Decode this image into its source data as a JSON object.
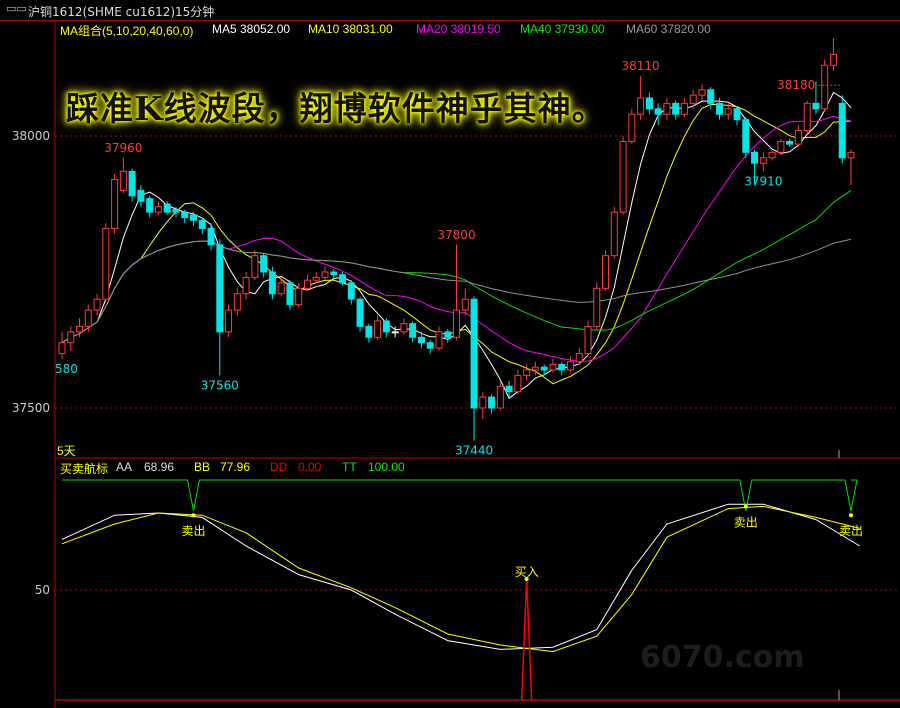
{
  "window": {
    "title": "沪铜1612(SHME cu1612)15分钟",
    "watermark": "6070.com"
  },
  "slogan": "踩准K线波段，翔博软件神乎其神。",
  "ma_header": {
    "group": "MA组合(5,10,20,40,60,0)",
    "ma5": "MA5 38052.00",
    "ma10": "MA10 38031.00",
    "ma20": "MA20 38019.50",
    "ma40": "MA40 37930.00",
    "ma60": "MA60 37820.00"
  },
  "indicator_header": {
    "name": "买卖航标",
    "aa_label": "AA",
    "aa_value": "68.96",
    "bb_label": "BB",
    "bb_value": "77.96",
    "dd_label": "DD",
    "dd_value": "0.00",
    "tt_label": "TT",
    "tt_value": "100.00"
  },
  "period_label": "5天",
  "colors": {
    "up": "#ff3b3b",
    "down": "#00e5e5",
    "ma5": "#ffffff",
    "ma10": "#ffff00",
    "ma20": "#ff00ff",
    "ma40": "#00e000",
    "ma60": "#909090",
    "grid": "#c00000",
    "aa": "#ffffff",
    "bb": "#ffff00",
    "tt": "#00e000",
    "dd": "#ff0000"
  },
  "chart_data": [
    {
      "type": "candlestick",
      "title": "沪铜1612(SHME cu1612)15分钟",
      "y_ticks": [
        38000,
        37500
      ],
      "ylim": [
        37420,
        38225
      ],
      "ma_periods": [
        5,
        10,
        20,
        40,
        60
      ],
      "ohlc": [
        [
          37600,
          37640,
          37590,
          37620
        ],
        [
          37620,
          37650,
          37605,
          37640
        ],
        [
          37640,
          37665,
          37630,
          37650
        ],
        [
          37650,
          37690,
          37640,
          37680
        ],
        [
          37680,
          37710,
          37670,
          37700
        ],
        [
          37700,
          37840,
          37695,
          37830
        ],
        [
          37830,
          37930,
          37820,
          37920
        ],
        [
          37900,
          37960,
          37895,
          37935
        ],
        [
          37935,
          37940,
          37880,
          37890
        ],
        [
          37900,
          37910,
          37870,
          37880
        ],
        [
          37885,
          37890,
          37850,
          37860
        ],
        [
          37860,
          37880,
          37855,
          37870
        ],
        [
          37875,
          37880,
          37855,
          37860
        ],
        [
          37865,
          37870,
          37850,
          37860
        ],
        [
          37860,
          37865,
          37840,
          37850
        ],
        [
          37855,
          37860,
          37835,
          37845
        ],
        [
          37845,
          37850,
          37820,
          37830
        ],
        [
          37830,
          37840,
          37790,
          37800
        ],
        [
          37800,
          37810,
          37560,
          37640
        ],
        [
          37640,
          37690,
          37630,
          37680
        ],
        [
          37680,
          37720,
          37670,
          37710
        ],
        [
          37710,
          37750,
          37700,
          37740
        ],
        [
          37740,
          37790,
          37735,
          37780
        ],
        [
          37780,
          37785,
          37740,
          37750
        ],
        [
          37750,
          37760,
          37700,
          37710
        ],
        [
          37710,
          37740,
          37705,
          37730
        ],
        [
          37730,
          37735,
          37680,
          37690
        ],
        [
          37690,
          37730,
          37685,
          37720
        ],
        [
          37720,
          37745,
          37715,
          37735
        ],
        [
          37735,
          37750,
          37730,
          37740
        ],
        [
          37740,
          37760,
          37735,
          37750
        ],
        [
          37750,
          37755,
          37735,
          37745
        ],
        [
          37745,
          37750,
          37725,
          37730
        ],
        [
          37730,
          37735,
          37690,
          37700
        ],
        [
          37700,
          37705,
          37640,
          37650
        ],
        [
          37650,
          37655,
          37620,
          37630
        ],
        [
          37630,
          37670,
          37625,
          37660
        ],
        [
          37660,
          37665,
          37630,
          37640
        ],
        [
          37640,
          37650,
          37630,
          37640
        ],
        [
          37640,
          37665,
          37635,
          37655
        ],
        [
          37655,
          37660,
          37620,
          37630
        ],
        [
          37630,
          37640,
          37610,
          37620
        ],
        [
          37620,
          37625,
          37600,
          37610
        ],
        [
          37610,
          37650,
          37605,
          37640
        ],
        [
          37640,
          37645,
          37620,
          37630
        ],
        [
          37630,
          37800,
          37625,
          37680
        ],
        [
          37680,
          37720,
          37670,
          37700
        ],
        [
          37700,
          37705,
          37440,
          37500
        ],
        [
          37500,
          37530,
          37480,
          37520
        ],
        [
          37520,
          37525,
          37490,
          37500
        ],
        [
          37500,
          37550,
          37495,
          37540
        ],
        [
          37540,
          37550,
          37520,
          37530
        ],
        [
          37530,
          37570,
          37525,
          37560
        ],
        [
          37560,
          37580,
          37550,
          37570
        ],
        [
          37570,
          37585,
          37560,
          37575
        ],
        [
          37575,
          37580,
          37560,
          37570
        ],
        [
          37570,
          37590,
          37565,
          37580
        ],
        [
          37580,
          37585,
          37560,
          37570
        ],
        [
          37570,
          37595,
          37565,
          37585
        ],
        [
          37585,
          37610,
          37580,
          37600
        ],
        [
          37600,
          37660,
          37595,
          37650
        ],
        [
          37650,
          37730,
          37645,
          37720
        ],
        [
          37720,
          37790,
          37715,
          37780
        ],
        [
          37780,
          37870,
          37775,
          37860
        ],
        [
          37860,
          38000,
          37855,
          37990
        ],
        [
          37990,
          38050,
          37985,
          38040
        ],
        [
          38040,
          38110,
          38030,
          38070
        ],
        [
          38070,
          38080,
          38040,
          38050
        ],
        [
          38050,
          38060,
          38020,
          38040
        ],
        [
          38040,
          38070,
          38030,
          38060
        ],
        [
          38060,
          38065,
          38030,
          38040
        ],
        [
          38040,
          38070,
          38035,
          38060
        ],
        [
          38060,
          38085,
          38050,
          38075
        ],
        [
          38075,
          38095,
          38065,
          38085
        ],
        [
          38085,
          38090,
          38050,
          38060
        ],
        [
          38060,
          38070,
          38030,
          38040
        ],
        [
          38040,
          38060,
          38030,
          38050
        ],
        [
          38050,
          38055,
          38020,
          38030
        ],
        [
          38030,
          38035,
          37960,
          37970
        ],
        [
          37970,
          37975,
          37910,
          37950
        ],
        [
          37950,
          37970,
          37935,
          37960
        ],
        [
          37960,
          37975,
          37955,
          37970
        ],
        [
          37970,
          37995,
          37965,
          37990
        ],
        [
          37990,
          37995,
          37980,
          37985
        ],
        [
          37985,
          38020,
          37980,
          38010
        ],
        [
          38010,
          38065,
          38005,
          38060
        ],
        [
          38060,
          38100,
          38040,
          38050
        ],
        [
          38050,
          38140,
          38045,
          38130
        ],
        [
          38130,
          38180,
          38120,
          38150
        ],
        [
          38060,
          38075,
          37950,
          37960
        ],
        [
          37960,
          37975,
          37910,
          37970
        ]
      ],
      "annotations": [
        {
          "text": "37960",
          "kind": "high",
          "index": 7
        },
        {
          "text": "37560",
          "kind": "low",
          "index": 18
        },
        {
          "text": "37800",
          "kind": "high",
          "index": 45
        },
        {
          "text": "37440",
          "kind": "low",
          "index": 47
        },
        {
          "text": "38110",
          "kind": "high",
          "index": 66
        },
        {
          "text": "38180",
          "kind": "high",
          "index": 89
        },
        {
          "text": "37910",
          "kind": "low",
          "index": 80
        },
        {
          "text": "580",
          "kind": "low",
          "index": 0
        }
      ]
    },
    {
      "type": "line",
      "title": "买卖航标",
      "y_ticks": [
        50
      ],
      "ylim": [
        0,
        100
      ],
      "x_index": [
        0,
        6,
        11,
        16,
        21,
        27,
        33,
        38,
        44,
        50,
        56,
        61,
        65,
        69,
        76,
        80,
        86,
        91
      ],
      "series": [
        {
          "name": "AA",
          "values": [
            73,
            84,
            85,
            83,
            70,
            57,
            50,
            39,
            27,
            23,
            24,
            32,
            59,
            80,
            89,
            89,
            82,
            70
          ]
        },
        {
          "name": "BB",
          "values": [
            71,
            80,
            85,
            84,
            76,
            60,
            51,
            42,
            30,
            25,
            22,
            29,
            48,
            74,
            87,
            88,
            83,
            78
          ]
        },
        {
          "name": "TT",
          "values": [
            100,
            100,
            100,
            100,
            100,
            100,
            100,
            100,
            100,
            100,
            100,
            100,
            100,
            100,
            100,
            100,
            100,
            100
          ]
        }
      ],
      "tt_dips": [
        {
          "index": 15,
          "value": 86
        },
        {
          "index": 78,
          "value": 86
        },
        {
          "index": 90,
          "value": 86
        }
      ],
      "signals": [
        {
          "text": "卖出",
          "index": 15,
          "value": 84
        },
        {
          "text": "买入",
          "index": 53,
          "value": 24
        },
        {
          "text": "卖出",
          "index": 78,
          "value": 88
        },
        {
          "text": "卖出",
          "index": 90,
          "value": 84
        }
      ],
      "dd_spike": {
        "index": 53,
        "value": 45
      }
    }
  ]
}
